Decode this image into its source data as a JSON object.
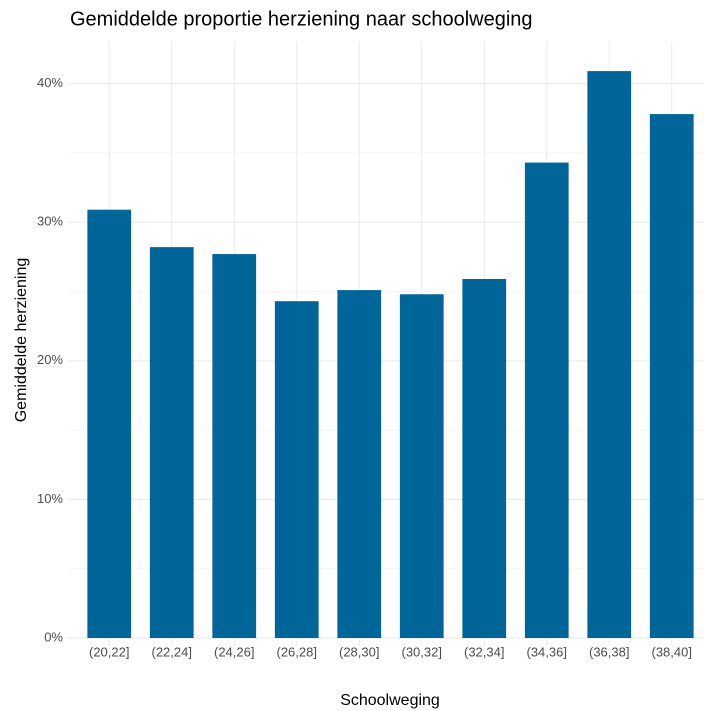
{
  "chart_data": {
    "type": "bar",
    "title": "Gemiddelde proportie herziening naar schoolweging",
    "x_label": "Schoolweging",
    "y_label": "Gemiddelde herziening",
    "categories": [
      "(20,22]",
      "(22,24]",
      "(24,26]",
      "(26,28]",
      "(28,30]",
      "(30,32]",
      "(32,34]",
      "(34,36]",
      "(36,38]",
      "(38,40]"
    ],
    "values": [
      30.9,
      28.2,
      27.7,
      24.3,
      25.1,
      24.8,
      25.9,
      34.3,
      40.9,
      37.8
    ],
    "color": "#006699",
    "ylim": [
      0,
      43
    ],
    "yticks": [
      {
        "value": 0,
        "label": "0%"
      },
      {
        "value": 10,
        "label": "10%"
      },
      {
        "value": 20,
        "label": "20%"
      },
      {
        "value": 30,
        "label": "30%"
      },
      {
        "value": 40,
        "label": "40%"
      }
    ],
    "yminor": [
      5,
      15,
      25,
      35
    ],
    "grid": true
  }
}
